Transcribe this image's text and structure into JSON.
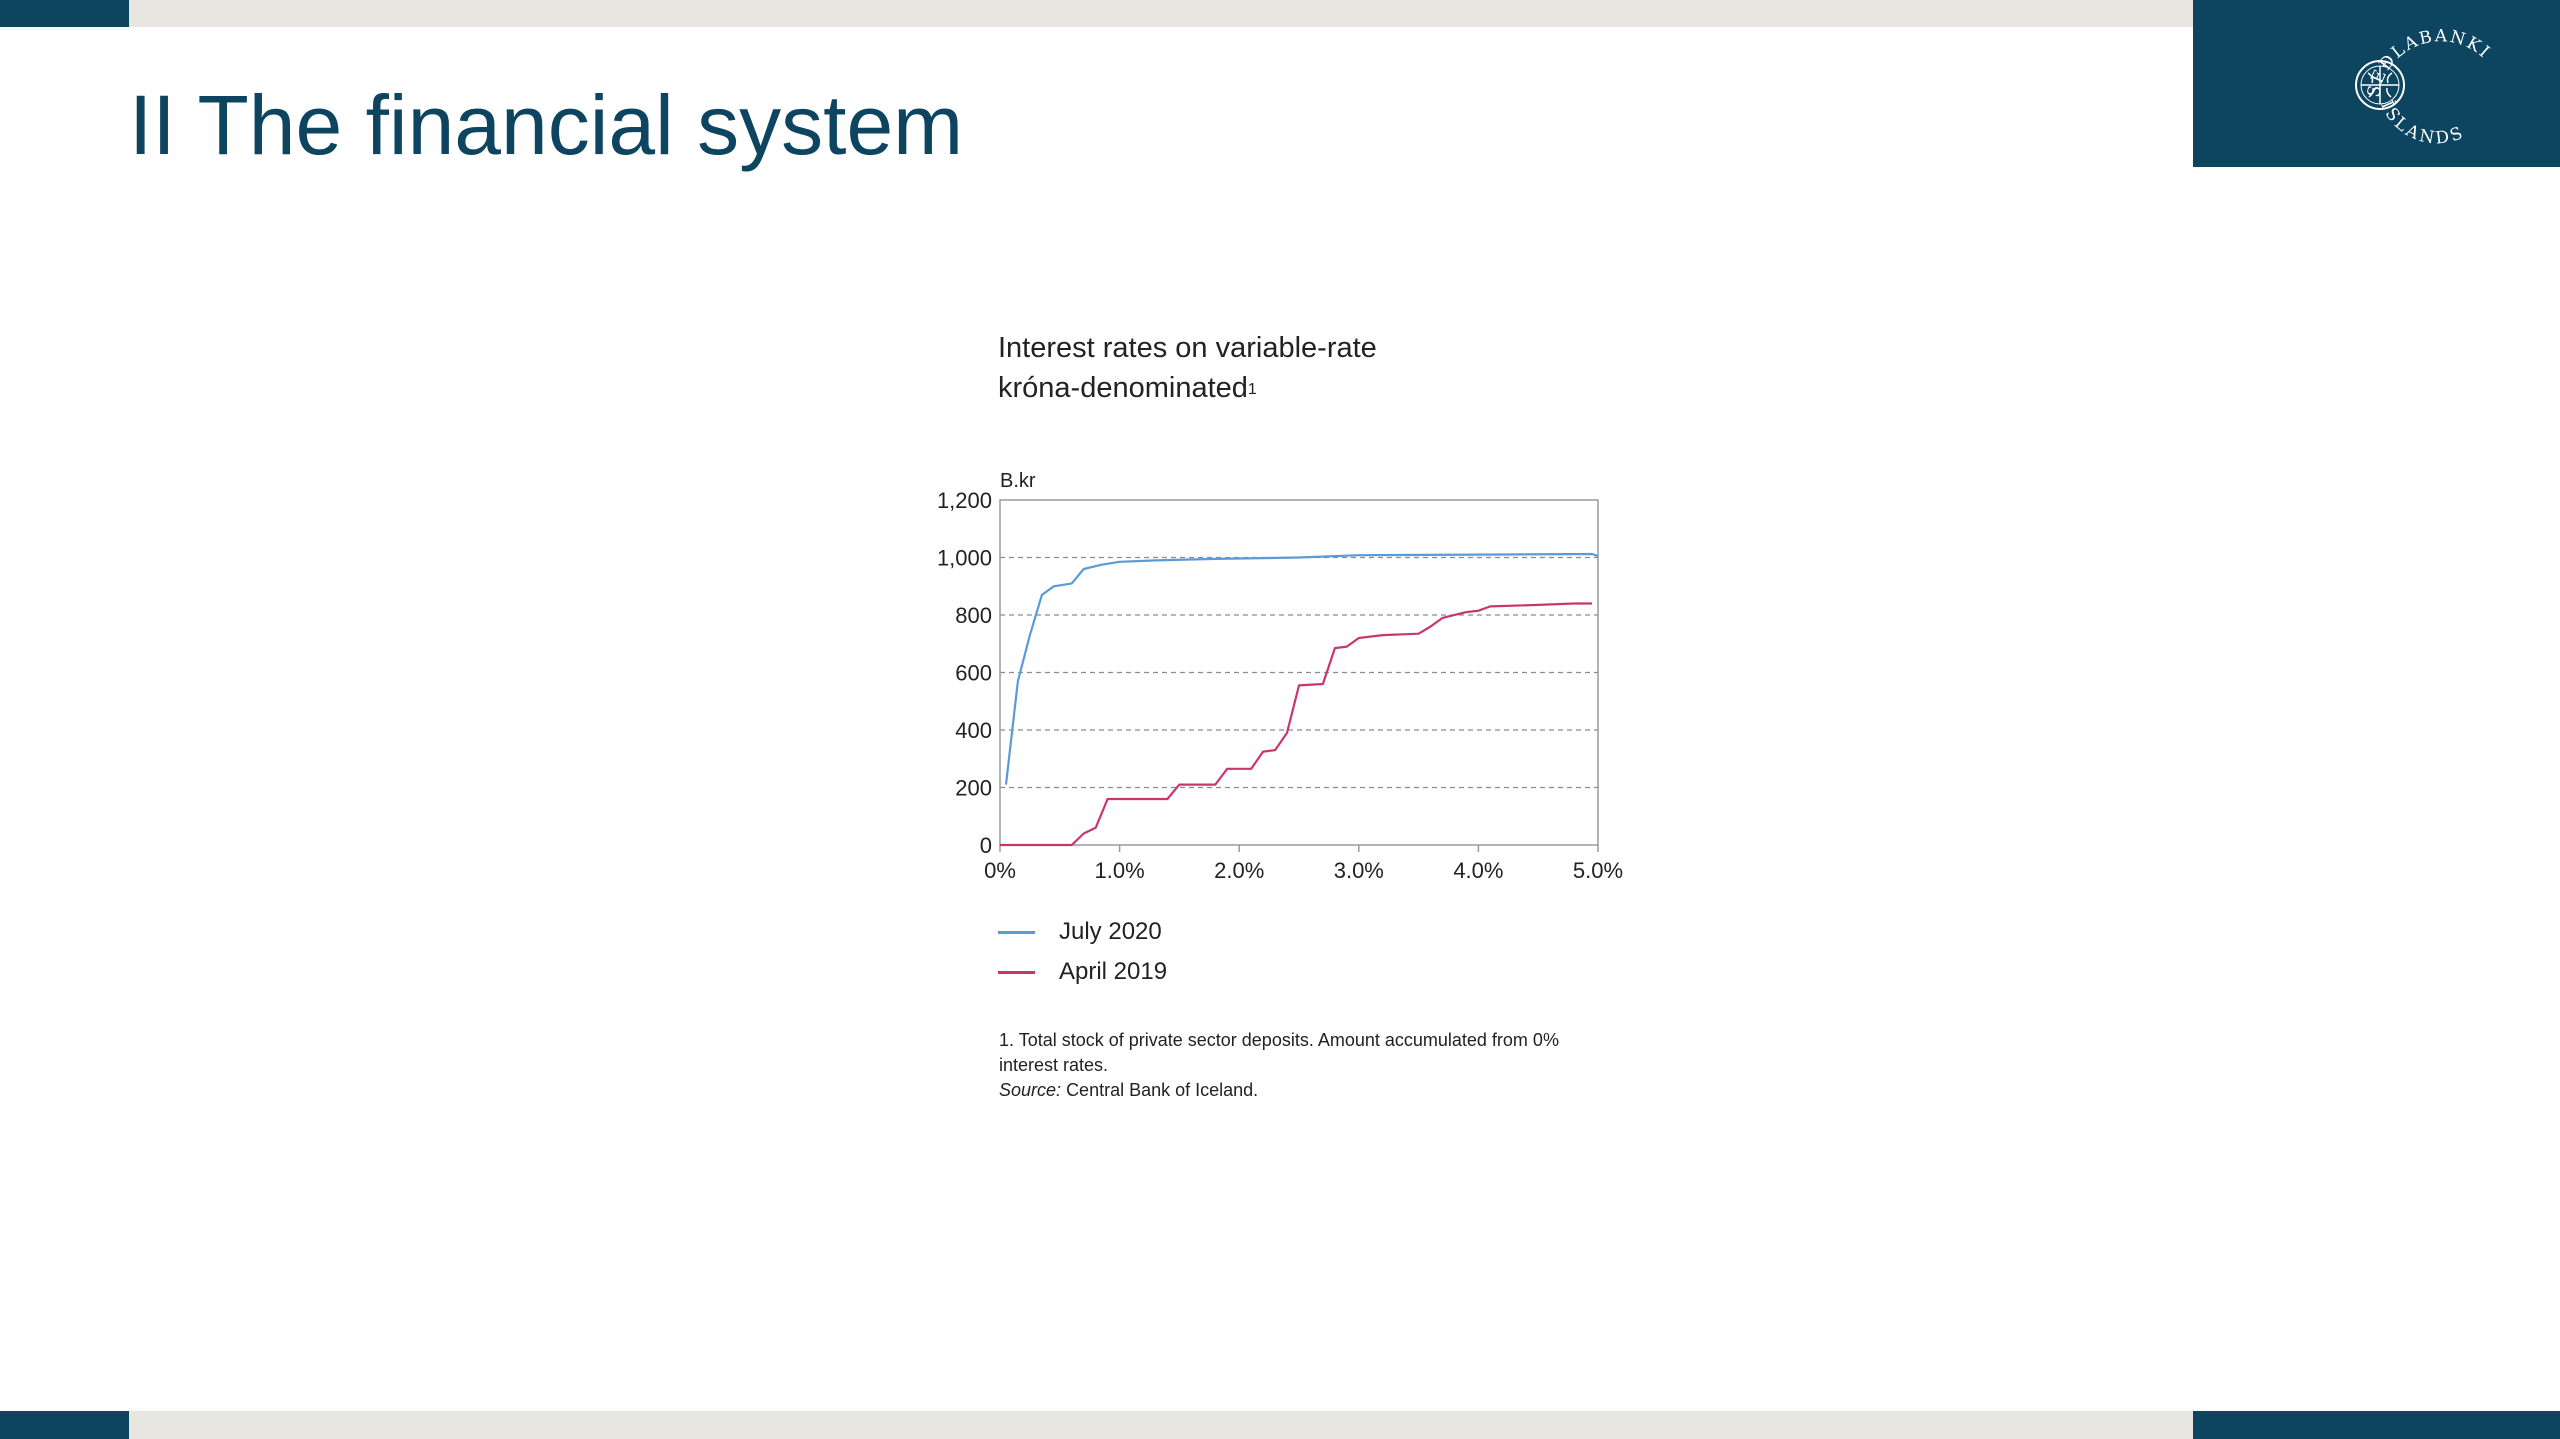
{
  "slide": {
    "title": "II The financial system",
    "logo": {
      "text_top": "SEÐLABANKI",
      "text_bottom": "ÍSLANDS",
      "brand_color": "#0d4560"
    }
  },
  "chart_data": {
    "type": "line",
    "title_line1": "Interest rates on variable-rate",
    "title_line2": "króna-denominated",
    "title_superscript": "1",
    "ylabel": "B.kr",
    "xlabel": "",
    "xlim": [
      0,
      5
    ],
    "ylim": [
      0,
      1200
    ],
    "x_ticks": [
      0,
      1,
      2,
      3,
      4,
      5
    ],
    "x_tick_labels": [
      "0%",
      "1.0%",
      "2.0%",
      "3.0%",
      "4.0%",
      "5.0%"
    ],
    "y_ticks": [
      0,
      200,
      400,
      600,
      800,
      1000,
      1200
    ],
    "y_tick_labels": [
      "0",
      "200",
      "400",
      "600",
      "800",
      "1,000",
      "1,200"
    ],
    "grid": "horizontal dashed",
    "legend_position": "bottom-left",
    "series": [
      {
        "name": "July 2020",
        "color": "#5b9bd5",
        "points": [
          [
            0.05,
            210
          ],
          [
            0.15,
            570
          ],
          [
            0.25,
            730
          ],
          [
            0.35,
            870
          ],
          [
            0.45,
            900
          ],
          [
            0.6,
            910
          ],
          [
            0.7,
            960
          ],
          [
            0.85,
            975
          ],
          [
            1.0,
            985
          ],
          [
            1.3,
            990
          ],
          [
            1.8,
            995
          ],
          [
            2.5,
            1000
          ],
          [
            3.0,
            1008
          ],
          [
            4.0,
            1010
          ],
          [
            4.95,
            1012
          ],
          [
            5.0,
            1005
          ]
        ]
      },
      {
        "name": "April 2019",
        "color": "#c8366d",
        "points": [
          [
            0,
            0
          ],
          [
            0.6,
            0
          ],
          [
            0.7,
            40
          ],
          [
            0.8,
            60
          ],
          [
            0.9,
            160
          ],
          [
            1.4,
            160
          ],
          [
            1.5,
            210
          ],
          [
            1.8,
            210
          ],
          [
            1.9,
            265
          ],
          [
            2.1,
            265
          ],
          [
            2.2,
            325
          ],
          [
            2.3,
            330
          ],
          [
            2.4,
            390
          ],
          [
            2.5,
            555
          ],
          [
            2.7,
            560
          ],
          [
            2.8,
            685
          ],
          [
            2.9,
            690
          ],
          [
            3.0,
            720
          ],
          [
            3.2,
            730
          ],
          [
            3.5,
            735
          ],
          [
            3.6,
            760
          ],
          [
            3.7,
            790
          ],
          [
            3.9,
            810
          ],
          [
            4.0,
            815
          ],
          [
            4.1,
            830
          ],
          [
            4.5,
            835
          ],
          [
            4.8,
            840
          ],
          [
            4.95,
            840
          ]
        ]
      }
    ]
  },
  "footnote": {
    "line1": "1. Total stock of private sector deposits. Amount accumulated from 0%",
    "line2": "interest rates.",
    "source_label": "Source:",
    "source_text": "Central Bank of Iceland."
  }
}
